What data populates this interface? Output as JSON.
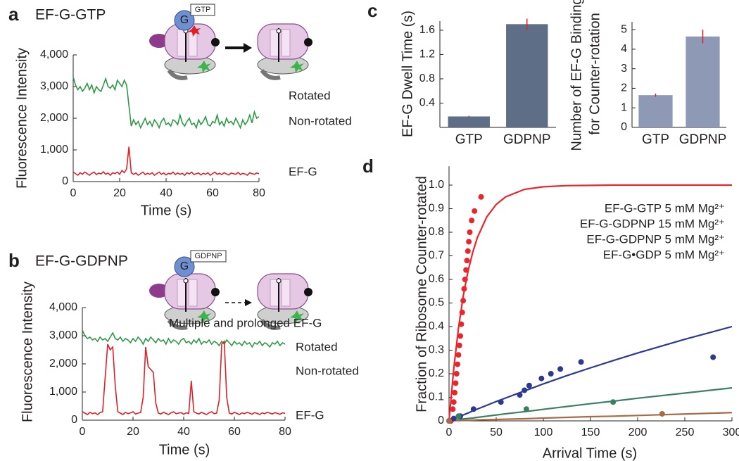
{
  "chart_data": [
    {
      "type": "line",
      "panel": "a",
      "title": "EF-G-GTP",
      "xlabel": "Time (s)",
      "ylabel": "Fluorescence Intensity",
      "xlim": [
        0,
        80
      ],
      "xticks": [
        0,
        20,
        40,
        60,
        80
      ],
      "ylim": [
        0,
        4000
      ],
      "yticks": [
        0,
        {
          "value": 1000,
          "label": "1,000"
        },
        {
          "value": 2000,
          "label": "2,000"
        },
        {
          "value": 3000,
          "label": "3,000"
        },
        {
          "value": 4000,
          "label": "4,000"
        }
      ],
      "annotations": [
        "Rotated",
        "Non-rotated",
        "EF-G",
        "G",
        "GTP"
      ],
      "x": [
        0,
        1,
        2,
        3,
        4,
        5,
        6,
        7,
        8,
        9,
        10,
        11,
        12,
        13,
        14,
        15,
        16,
        17,
        18,
        19,
        20,
        21,
        22,
        23,
        24,
        25,
        26,
        27,
        28,
        29,
        30,
        31,
        32,
        33,
        34,
        35,
        36,
        37,
        38,
        39,
        40,
        41,
        42,
        43,
        44,
        45,
        46,
        47,
        48,
        49,
        50,
        51,
        52,
        53,
        54,
        55,
        56,
        57,
        58,
        59,
        60,
        61,
        62,
        63,
        64,
        65,
        66,
        67,
        68,
        69,
        70,
        71,
        72,
        73,
        74,
        75,
        76,
        77,
        78,
        79,
        80
      ],
      "series": [
        {
          "color": "#2e9a47",
          "values": [
            3300,
            3050,
            2900,
            3000,
            2850,
            2950,
            3100,
            2900,
            3050,
            2800,
            3000,
            2900,
            2850,
            3050,
            3250,
            3000,
            2950,
            3050,
            2900,
            3200,
            3100,
            3000,
            3200,
            3050,
            2400,
            1750,
            1950,
            1800,
            1900,
            1700,
            1850,
            2000,
            1800,
            1900,
            1750,
            1950,
            1850,
            1700,
            1900,
            2000,
            1800,
            1850,
            1750,
            1950,
            1900,
            1800,
            2100,
            1850,
            1750,
            1900,
            2000,
            1800,
            1850,
            1700,
            1950,
            1800,
            1900,
            2050,
            1800,
            1750,
            1900,
            1850,
            2100,
            1800,
            1900,
            1750,
            2000,
            1850,
            1900,
            1800,
            2000,
            1850,
            1700,
            1950,
            1800,
            1900,
            2100,
            1850,
            2200,
            2000,
            2050
          ]
        },
        {
          "color": "#e02027",
          "values": [
            300,
            250,
            200,
            280,
            230,
            300,
            250,
            200,
            260,
            300,
            220,
            270,
            240,
            310,
            230,
            270,
            200,
            280,
            250,
            300,
            230,
            350,
            280,
            400,
            1100,
            280,
            230,
            270,
            200,
            250,
            300,
            220,
            260,
            230,
            280,
            200,
            250,
            300,
            230,
            270,
            210,
            260,
            240,
            300,
            220,
            270,
            230,
            260,
            200,
            280,
            240,
            300,
            220,
            250,
            270,
            210,
            260,
            230,
            280,
            200,
            250,
            300,
            230,
            260,
            220,
            280,
            240,
            210,
            270,
            250,
            230,
            290,
            220,
            260,
            240,
            200,
            280,
            250,
            230,
            270,
            250
          ]
        }
      ]
    },
    {
      "type": "line",
      "panel": "b",
      "title": "EF-G-GDPNP",
      "xlabel": "Time (s)",
      "ylabel": "Fluorescence Intensity",
      "xlim": [
        0,
        80
      ],
      "xticks": [
        0,
        20,
        40,
        60,
        80
      ],
      "ylim": [
        0,
        4000
      ],
      "yticks": [
        0,
        {
          "value": 1000,
          "label": "1,000"
        },
        {
          "value": 2000,
          "label": "2,000"
        },
        {
          "value": 3000,
          "label": "3,000"
        },
        {
          "value": 4000,
          "label": "4,000"
        }
      ],
      "annotations": [
        "Multiple and prolonged EF-G",
        "Rotated",
        "Non-rotated",
        "EF-G",
        "G",
        "GDPNP"
      ],
      "x": [
        0,
        1,
        2,
        3,
        4,
        5,
        6,
        7,
        8,
        9,
        10,
        11,
        12,
        13,
        14,
        15,
        16,
        17,
        18,
        19,
        20,
        21,
        22,
        23,
        24,
        25,
        26,
        27,
        28,
        29,
        30,
        31,
        32,
        33,
        34,
        35,
        36,
        37,
        38,
        39,
        40,
        41,
        42,
        43,
        44,
        45,
        46,
        47,
        48,
        49,
        50,
        51,
        52,
        53,
        54,
        55,
        56,
        57,
        58,
        59,
        60,
        61,
        62,
        63,
        64,
        65,
        66,
        67,
        68,
        69,
        70,
        71,
        72,
        73,
        74,
        75,
        76,
        77,
        78,
        79,
        80
      ],
      "series": [
        {
          "color": "#2e9a47",
          "values": [
            3200,
            3000,
            2900,
            2950,
            2850,
            2900,
            2800,
            2950,
            2850,
            2900,
            2800,
            2950,
            3100,
            2900,
            2850,
            2950,
            2800,
            2900,
            2850,
            2750,
            2900,
            2800,
            2950,
            2850,
            2700,
            2900,
            2800,
            2950,
            2850,
            2750,
            2900,
            2800,
            2850,
            2700,
            2900,
            2750,
            2850,
            2800,
            2700,
            2850,
            2900,
            2750,
            2800,
            2700,
            2850,
            2750,
            2900,
            2700,
            2800,
            2750,
            2850,
            2700,
            2800,
            2750,
            2650,
            2800,
            2700,
            2850,
            2750,
            2650,
            2800,
            2700,
            2750,
            2650,
            2800,
            2700,
            2750,
            2600,
            2750,
            2700,
            2800,
            2650,
            2750,
            2700,
            2600,
            2750,
            2700,
            2800,
            2650,
            2750,
            2700
          ]
        },
        {
          "color": "#e02027",
          "values": [
            300,
            250,
            200,
            280,
            230,
            260,
            200,
            270,
            300,
            1500,
            2700,
            2500,
            2600,
            1200,
            300,
            250,
            200,
            280,
            230,
            260,
            300,
            220,
            250,
            270,
            800,
            2600,
            1900,
            1800,
            1700,
            600,
            250,
            220,
            280,
            240,
            200,
            260,
            300,
            230,
            250,
            270,
            210,
            260,
            240,
            1400,
            300,
            250,
            220,
            280,
            240,
            200,
            260,
            300,
            230,
            250,
            700,
            2700,
            2800,
            800,
            250,
            220,
            280,
            240,
            200,
            260,
            230,
            280,
            250,
            210,
            270,
            240,
            200,
            260,
            230,
            280,
            250,
            220,
            270,
            240,
            210,
            260,
            240
          ]
        }
      ]
    },
    {
      "type": "bar",
      "panel": "c",
      "ylabel": [
        "EF-G Dwell Time (s)"
      ],
      "categories": [
        "GTP",
        "GDPNP"
      ],
      "values": [
        0.18,
        1.7
      ],
      "errors": [
        0.01,
        0.09
      ],
      "color": "#5f6e87",
      "error_color": "#e02027",
      "ylim": [
        0,
        1.75
      ],
      "yticks": [
        0.4,
        0.8,
        1.2,
        1.6
      ]
    },
    {
      "type": "bar",
      "ylabel": [
        "Number of EF-G Binding",
        "for Counter-rotation"
      ],
      "categories": [
        "GTP",
        "GDPNP"
      ],
      "values": [
        1.65,
        4.65
      ],
      "errors": [
        0.08,
        0.35
      ],
      "color": "#8e9ab5",
      "error_color": "#e02027",
      "ylim": [
        0,
        5.4
      ],
      "yticks": [
        0,
        1,
        2,
        3,
        4,
        5
      ]
    },
    {
      "type": "scatter",
      "panel": "d",
      "xlabel": "Arrival Time (s)",
      "ylabel": "Fraction of Ribosome Counter-rotated",
      "xlim": [
        0,
        300
      ],
      "xticks": [
        0,
        50,
        100,
        150,
        200,
        250,
        300
      ],
      "ylim": [
        0,
        1.08
      ],
      "yticks": [
        0,
        0.1,
        0.2,
        0.3,
        0.4,
        0.5,
        0.6,
        0.7,
        0.8,
        0.9,
        {
          "value": 1,
          "label": "1.0"
        }
      ],
      "legend": "upper right",
      "fit_x": [
        0,
        5,
        10,
        15,
        20,
        25,
        30,
        40,
        50,
        60,
        80,
        100,
        125,
        150,
        175,
        200,
        250,
        300
      ],
      "series": [
        {
          "name": "EF-G-GTP 5 mM Mg²⁺",
          "color": "#e8262c",
          "x": [
            2,
            4,
            5,
            6,
            7,
            8,
            9,
            10,
            11,
            12,
            13,
            14,
            15,
            16,
            17,
            18,
            19,
            20,
            21,
            22,
            24,
            27,
            34
          ],
          "values": [
            0,
            0.05,
            0.08,
            0.12,
            0.16,
            0.2,
            0.24,
            0.28,
            0.32,
            0.36,
            0.41,
            0.46,
            0.51,
            0.56,
            0.6,
            0.64,
            0.68,
            0.72,
            0.76,
            0.8,
            0.85,
            0.89,
            0.95
          ],
          "fit": [
            0,
            0.221,
            0.393,
            0.528,
            0.632,
            0.713,
            0.777,
            0.865,
            0.918,
            0.95,
            0.982,
            0.993,
            0.998,
            0.999,
            1,
            1,
            1,
            1
          ]
        },
        {
          "name": "EF-G-GDPNP 15 mM Mg²⁺",
          "color": "#2b3990",
          "x": [
            0,
            5,
            12,
            26,
            55,
            75,
            80,
            85,
            98,
            108,
            118,
            140,
            280
          ],
          "values": [
            0,
            0.01,
            0.02,
            0.05,
            0.08,
            0.11,
            0.13,
            0.15,
            0.18,
            0.2,
            0.22,
            0.25,
            0.27
          ],
          "fit": [
            0,
            0.008,
            0.017,
            0.025,
            0.033,
            0.042,
            0.05,
            0.066,
            0.082,
            0.097,
            0.127,
            0.157,
            0.192,
            0.225,
            0.257,
            0.288,
            0.346,
            0.4
          ]
        },
        {
          "name": "EF-G-GDPNP 5 mM Mg²⁺",
          "color": "#3a8060",
          "x": [
            0,
            10,
            82,
            174
          ],
          "values": [
            0,
            0.02,
            0.05,
            0.08
          ],
          "fit": [
            0,
            0.003,
            0.005,
            0.008,
            0.01,
            0.012,
            0.015,
            0.02,
            0.025,
            0.03,
            0.039,
            0.049,
            0.061,
            0.073,
            0.084,
            0.096,
            0.118,
            0.14
          ]
        },
        {
          "name": "EF-G•GDP 5 mM Mg²⁺",
          "color": "#a86b46",
          "x": [
            0,
            226
          ],
          "values": [
            0,
            0.03
          ],
          "fit": [
            0,
            0.001,
            0.001,
            0.002,
            0.002,
            0.003,
            0.004,
            0.005,
            0.006,
            0.007,
            0.009,
            0.012,
            0.015,
            0.018,
            0.02,
            0.023,
            0.029,
            0.035
          ]
        }
      ]
    }
  ]
}
